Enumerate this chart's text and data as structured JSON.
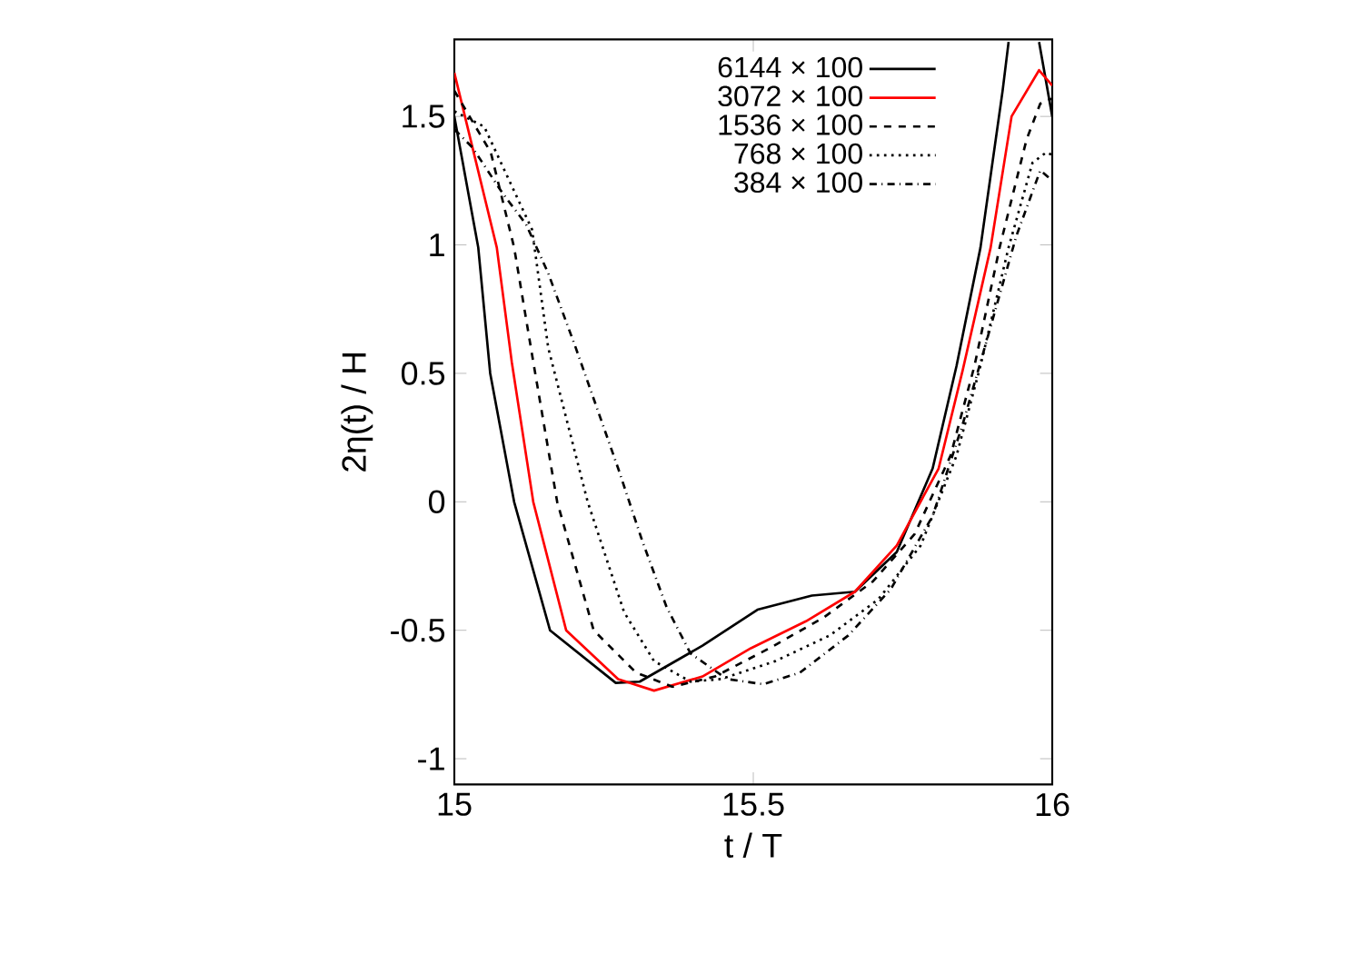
{
  "chart_data": {
    "type": "line",
    "xlabel": "t / T",
    "ylabel": "2η(t) / H",
    "xlim": [
      15,
      16
    ],
    "ylim": [
      -1.1,
      1.8
    ],
    "xticks": [
      15,
      15.5,
      16
    ],
    "yticks": [
      -1,
      -0.5,
      0,
      0.5,
      1,
      1.5
    ],
    "legend": "top right",
    "grid": false,
    "series": [
      {
        "name": "6144 × 100",
        "color": "#000000",
        "line_style": "solid",
        "x": [
          15,
          15.04,
          15.06,
          15.1,
          15.16,
          15.27,
          15.31,
          15.415,
          15.507,
          15.598,
          15.67,
          15.74,
          15.8,
          15.84,
          15.88,
          15.917,
          15.927,
          null,
          15.978,
          16
        ],
        "values": [
          1.5,
          0.99,
          0.5,
          0,
          -0.5,
          -0.705,
          -0.7,
          -0.56,
          -0.42,
          -0.365,
          -0.35,
          -0.195,
          0.13,
          0.53,
          0.99,
          1.6,
          1.79,
          null,
          1.79,
          1.5
        ]
      },
      {
        "name": "3072 × 100",
        "color": "#ff0000",
        "line_style": "solid",
        "x": [
          15,
          15.071,
          15.096,
          15.132,
          15.187,
          15.274,
          15.334,
          15.415,
          15.496,
          15.588,
          15.67,
          15.74,
          15.81,
          15.85,
          15.897,
          15.932,
          15.978,
          16
        ],
        "values": [
          1.67,
          0.99,
          0.545,
          0,
          -0.5,
          -0.69,
          -0.735,
          -0.68,
          -0.57,
          -0.465,
          -0.35,
          -0.17,
          0.13,
          0.51,
          0.99,
          1.5,
          1.68,
          1.62
        ]
      },
      {
        "name": "1536 × 100",
        "color": "#000000",
        "line_style": "dashed",
        "x": [
          15,
          15.061,
          15.1,
          15.132,
          15.172,
          15.233,
          15.304,
          15.365,
          15.436,
          15.527,
          15.618,
          15.7,
          15.77,
          15.83,
          15.87,
          15.912,
          15.957,
          15.98,
          16
        ],
        "values": [
          1.6,
          1.36,
          0.99,
          0.545,
          0,
          -0.5,
          -0.665,
          -0.72,
          -0.68,
          -0.57,
          -0.45,
          -0.31,
          -0.125,
          0.18,
          0.53,
          0.99,
          1.41,
          1.55,
          1.57
        ]
      },
      {
        "name": "768 × 100",
        "color": "#000000",
        "line_style": "dotted",
        "x": [
          15,
          15.05,
          15.13,
          15.157,
          15.223,
          15.284,
          15.334,
          15.395,
          15.446,
          15.537,
          15.628,
          15.709,
          15.78,
          15.84,
          15.88,
          15.927,
          15.967,
          15.99,
          16
        ],
        "values": [
          1.52,
          1.46,
          1.06,
          0.6,
          0,
          -0.43,
          -0.62,
          -0.7,
          -0.69,
          -0.62,
          -0.52,
          -0.38,
          -0.17,
          0.18,
          0.53,
          0.99,
          1.32,
          1.36,
          1.35
        ]
      },
      {
        "name": "384 × 100",
        "color": "#000000",
        "line_style": "dashdot",
        "x": [
          15,
          15.03,
          15.081,
          15.12,
          15.157,
          15.203,
          15.274,
          15.314,
          15.355,
          15.395,
          15.456,
          15.517,
          15.578,
          15.659,
          15.73,
          15.8,
          15.85,
          15.887,
          15.94,
          15.98,
          16
        ],
        "values": [
          1.45,
          1.38,
          1.2,
          1.08,
          0.89,
          0.6,
          0.13,
          -0.15,
          -0.41,
          -0.59,
          -0.69,
          -0.71,
          -0.665,
          -0.52,
          -0.34,
          -0.055,
          0.3,
          0.6,
          1.035,
          1.29,
          1.25
        ]
      }
    ]
  }
}
